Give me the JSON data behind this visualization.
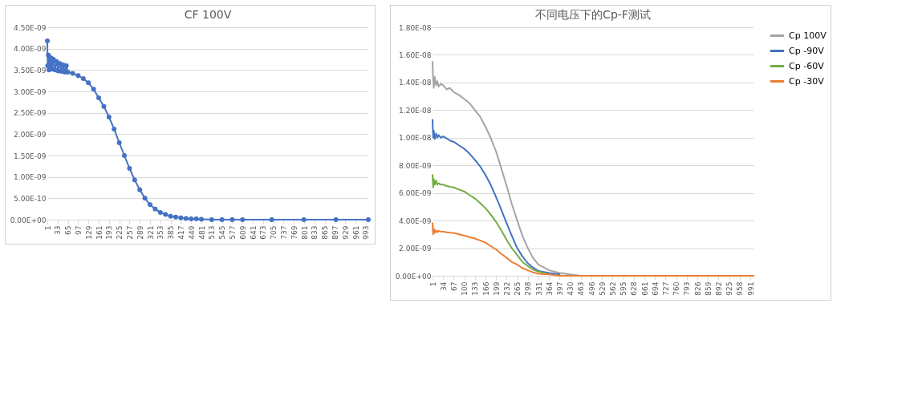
{
  "chart_data": [
    {
      "type": "line",
      "title": "CF 100V",
      "marker": "circle",
      "grid": "y",
      "legend": false,
      "xlim": [
        1,
        1001
      ],
      "xticks": [
        1,
        33,
        65,
        97,
        129,
        161,
        193,
        225,
        257,
        289,
        321,
        353,
        385,
        417,
        449,
        481,
        513,
        545,
        577,
        609,
        641,
        673,
        705,
        737,
        769,
        801,
        833,
        865,
        897,
        929,
        961,
        993
      ],
      "ylim": [
        0,
        4.5e-09
      ],
      "yticks": [
        {
          "value": 0,
          "label": "0.00E+00"
        },
        {
          "value": 5e-10,
          "label": "5.00E-10"
        },
        {
          "value": 1e-09,
          "label": "1.00E-09"
        },
        {
          "value": 1.5e-09,
          "label": "1.50E-09"
        },
        {
          "value": 2e-09,
          "label": "2.00E-09"
        },
        {
          "value": 2.5e-09,
          "label": "2.50E-09"
        },
        {
          "value": 3e-09,
          "label": "3.00E-09"
        },
        {
          "value": 3.5e-09,
          "label": "3.50E-09"
        },
        {
          "value": 4e-09,
          "label": "4.00E-09"
        },
        {
          "value": 4.5e-09,
          "label": "4.50E-09"
        }
      ],
      "series": [
        {
          "color": "#4472c4",
          "x": [
            1,
            2,
            4,
            6,
            8,
            10,
            13,
            16,
            20,
            25,
            30,
            35,
            40,
            45,
            50,
            55,
            60,
            65,
            80,
            97,
            113,
            129,
            145,
            161,
            177,
            193,
            209,
            225,
            241,
            257,
            273,
            289,
            305,
            321,
            337,
            353,
            369,
            385,
            401,
            417,
            433,
            449,
            465,
            481,
            513,
            545,
            577,
            609,
            700,
            800,
            900,
            1001
          ],
          "values": [
            4.18e-09,
            3.6e-09,
            3.85e-09,
            3.5e-09,
            3.8e-09,
            3.55e-09,
            3.78e-09,
            3.52e-09,
            3.75e-09,
            3.5e-09,
            3.7e-09,
            3.48e-09,
            3.65e-09,
            3.47e-09,
            3.62e-09,
            3.45e-09,
            3.6e-09,
            3.45e-09,
            3.42e-09,
            3.37e-09,
            3.3e-09,
            3.2e-09,
            3.05e-09,
            2.85e-09,
            2.65e-09,
            2.4e-09,
            2.12e-09,
            1.8e-09,
            1.5e-09,
            1.2e-09,
            9.3e-10,
            7e-10,
            5e-10,
            3.5e-10,
            2.5e-10,
            1.7e-10,
            1.2e-10,
            8e-11,
            6e-11,
            4e-11,
            3e-11,
            2e-11,
            2e-11,
            1e-11,
            0,
            0,
            0,
            0,
            0,
            0,
            0,
            0
          ]
        }
      ]
    },
    {
      "type": "line",
      "title": "不同电压下的Cp-F测试",
      "grid": "y",
      "legend": "right",
      "xlim": [
        1,
        1001
      ],
      "xticks": [
        1,
        34,
        67,
        100,
        133,
        166,
        199,
        232,
        265,
        298,
        331,
        364,
        397,
        430,
        463,
        496,
        529,
        562,
        595,
        628,
        661,
        694,
        727,
        760,
        793,
        826,
        859,
        892,
        925,
        958,
        991
      ],
      "ylim": [
        0,
        1.8e-08
      ],
      "yticks": [
        {
          "value": 0,
          "label": "0.00E+00"
        },
        {
          "value": 2e-09,
          "label": "2.00E-09"
        },
        {
          "value": 4e-09,
          "label": "4.00E-09"
        },
        {
          "value": 6e-09,
          "label": "6.00E-09"
        },
        {
          "value": 8e-09,
          "label": "8.00E-09"
        },
        {
          "value": 1e-08,
          "label": "1.00E-08"
        },
        {
          "value": 1.2e-08,
          "label": "1.20E-08"
        },
        {
          "value": 1.4e-08,
          "label": "1.40E-08"
        },
        {
          "value": 1.6e-08,
          "label": "1.60E-08"
        },
        {
          "value": 1.8e-08,
          "label": "1.80E-08"
        }
      ],
      "series": [
        {
          "name": "Cp 100V",
          "color": "#a5a5a5",
          "x": [
            1,
            3,
            5,
            8,
            12,
            16,
            20,
            27,
            34,
            45,
            55,
            67,
            83,
            100,
            116,
            133,
            150,
            166,
            182,
            199,
            215,
            232,
            248,
            265,
            281,
            298,
            314,
            331,
            364,
            397,
            430,
            463,
            496,
            600,
            800,
            1001
          ],
          "values": [
            1.55e-08,
            1.42e-08,
            1.36e-08,
            1.44e-08,
            1.38e-08,
            1.41e-08,
            1.37e-08,
            1.39e-08,
            1.38e-08,
            1.35e-08,
            1.36e-08,
            1.33e-08,
            1.31e-08,
            1.28e-08,
            1.25e-08,
            1.2e-08,
            1.15e-08,
            1.08e-08,
            1e-08,
            9e-09,
            7.8e-09,
            6.5e-09,
            5.2e-09,
            4e-09,
            2.9e-09,
            2e-09,
            1.3e-09,
            8e-10,
            4e-10,
            2e-10,
            1e-10,
            0,
            0,
            0,
            0,
            0
          ]
        },
        {
          "name": "Cp -90V",
          "color": "#4472c4",
          "x": [
            1,
            3,
            5,
            8,
            12,
            16,
            20,
            27,
            34,
            45,
            55,
            67,
            83,
            100,
            116,
            133,
            150,
            166,
            182,
            199,
            215,
            232,
            248,
            265,
            281,
            298,
            314,
            331,
            364,
            397
          ],
          "values": [
            1.13e-08,
            1e-08,
            1.05e-08,
            9.9e-09,
            1.03e-08,
            1e-08,
            1.02e-08,
            1e-08,
            1.01e-08,
            9.95e-09,
            9.8e-09,
            9.7e-09,
            9.45e-09,
            9.2e-09,
            8.85e-09,
            8.4e-09,
            7.9e-09,
            7.3e-09,
            6.6e-09,
            5.7e-09,
            4.8e-09,
            3.8e-09,
            2.9e-09,
            2e-09,
            1.4e-09,
            9e-10,
            6e-10,
            3.5e-10,
            2e-10,
            1e-10
          ]
        },
        {
          "name": "Cp -60V",
          "color": "#70ad47",
          "x": [
            1,
            3,
            5,
            8,
            12,
            16,
            20,
            27,
            34,
            45,
            55,
            67,
            83,
            100,
            116,
            133,
            150,
            166,
            182,
            199,
            215,
            232,
            248,
            265,
            281,
            298,
            314,
            331,
            364
          ],
          "values": [
            7.3e-09,
            6.4e-09,
            7e-09,
            6.6e-09,
            6.9e-09,
            6.6e-09,
            6.7e-09,
            6.6e-09,
            6.6e-09,
            6.5e-09,
            6.45e-09,
            6.4e-09,
            6.25e-09,
            6.1e-09,
            5.85e-09,
            5.6e-09,
            5.25e-09,
            4.9e-09,
            4.45e-09,
            3.9e-09,
            3.3e-09,
            2.6e-09,
            2e-09,
            1.5e-09,
            1e-09,
            7e-10,
            4.5e-10,
            3e-10,
            1e-10
          ]
        },
        {
          "name": "Cp -30V",
          "color": "#ed7d31",
          "x": [
            1,
            3,
            5,
            8,
            12,
            16,
            20,
            27,
            34,
            45,
            55,
            67,
            83,
            100,
            116,
            133,
            150,
            166,
            182,
            199,
            215,
            232,
            248,
            265,
            281,
            298,
            314,
            331,
            364,
            397,
            430,
            463,
            496,
            600,
            800,
            1001
          ],
          "values": [
            3.8e-09,
            3e-09,
            3.4e-09,
            3.1e-09,
            3.3e-09,
            3.15e-09,
            3.25e-09,
            3.2e-09,
            3.2e-09,
            3.15e-09,
            3.12e-09,
            3.1e-09,
            3e-09,
            2.9e-09,
            2.8e-09,
            2.7e-09,
            2.55e-09,
            2.4e-09,
            2.15e-09,
            1.9e-09,
            1.6e-09,
            1.3e-09,
            1e-09,
            8e-10,
            5.5e-10,
            4e-10,
            2.5e-10,
            1.5e-10,
            1e-10,
            0,
            0,
            0,
            0,
            0,
            0,
            0
          ]
        }
      ]
    }
  ]
}
